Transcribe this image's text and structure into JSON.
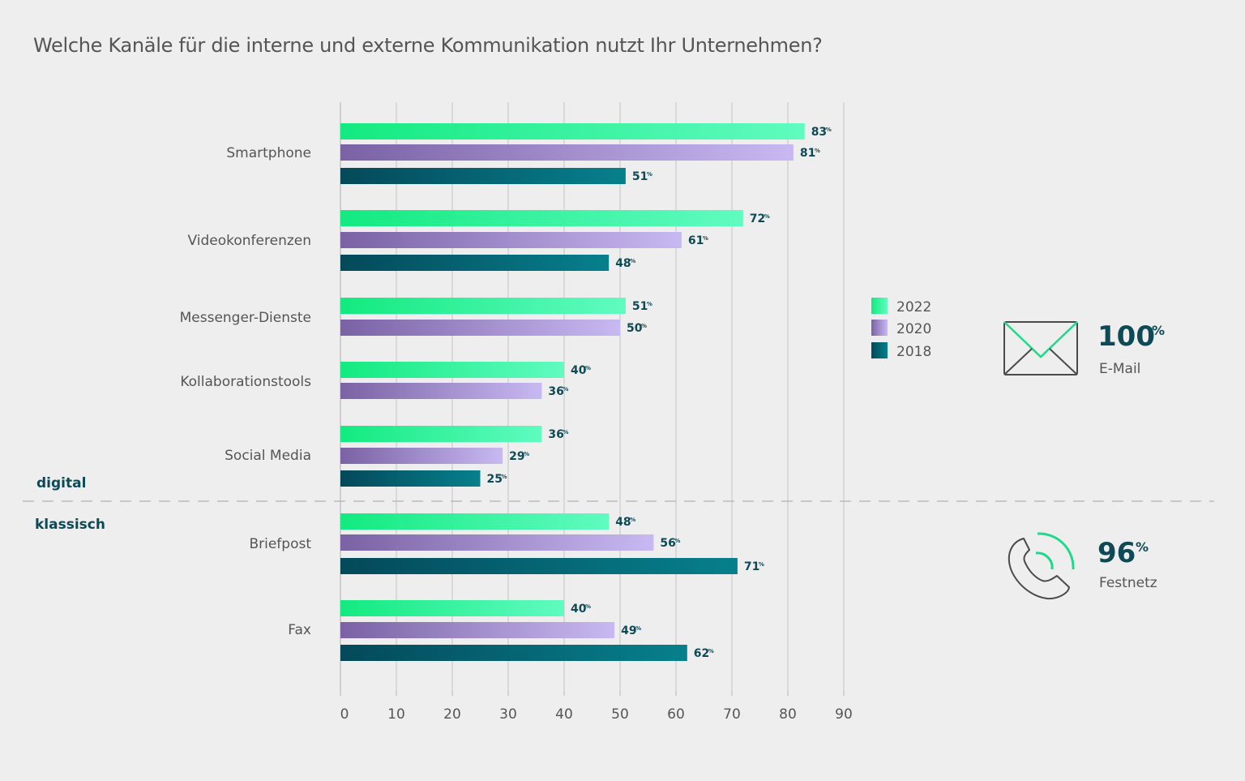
{
  "title": "Welche Kanäle für die interne und externe Kommunikation nutzt Ihr Unternehmen?",
  "chart_data": {
    "type": "bar",
    "orientation": "horizontal",
    "xlim": [
      0,
      90
    ],
    "x_ticks": [
      0,
      10,
      20,
      30,
      40,
      50,
      60,
      70,
      80,
      90
    ],
    "grid": true,
    "legend_position": "right",
    "value_suffix": "%",
    "series_order": [
      "2022",
      "2020",
      "2018"
    ],
    "series_colors": {
      "2022": [
        "#13ea80",
        "#60fbc0"
      ],
      "2020": [
        "#7a62a4",
        "#c8b9f2"
      ],
      "2018": [
        "#04495a",
        "#07808c"
      ]
    },
    "categories": [
      {
        "name": "Smartphone",
        "values": {
          "2022": 83,
          "2020": 81,
          "2018": 51
        }
      },
      {
        "name": "Videokonferenzen",
        "values": {
          "2022": 72,
          "2020": 61,
          "2018": 48
        }
      },
      {
        "name": "Messenger-Dienste",
        "values": {
          "2022": 51,
          "2020": 50
        }
      },
      {
        "name": "Kollaborationstools",
        "values": {
          "2022": 40,
          "2020": 36
        }
      },
      {
        "name": "Social Media",
        "values": {
          "2022": 36,
          "2020": 29,
          "2018": 25
        }
      },
      {
        "name": "Briefpost",
        "values": {
          "2022": 48,
          "2020": 56,
          "2018": 71
        }
      },
      {
        "name": "Fax",
        "values": {
          "2022": 40,
          "2020": 49,
          "2018": 62
        }
      }
    ],
    "groups": [
      {
        "label": "digital",
        "categories": [
          "Smartphone",
          "Videokonferenzen",
          "Messenger-Dienste",
          "Kollaborationstools",
          "Social Media"
        ]
      },
      {
        "label": "klassisch",
        "categories": [
          "Briefpost",
          "Fax"
        ]
      }
    ],
    "legend": [
      "2022",
      "2020",
      "2018"
    ]
  },
  "stats": [
    {
      "value": "100",
      "unit": "%",
      "label": "E-Mail",
      "icon": "envelope-icon"
    },
    {
      "value": "96",
      "unit": "%",
      "label": "Festnetz",
      "icon": "phone-icon"
    }
  ]
}
